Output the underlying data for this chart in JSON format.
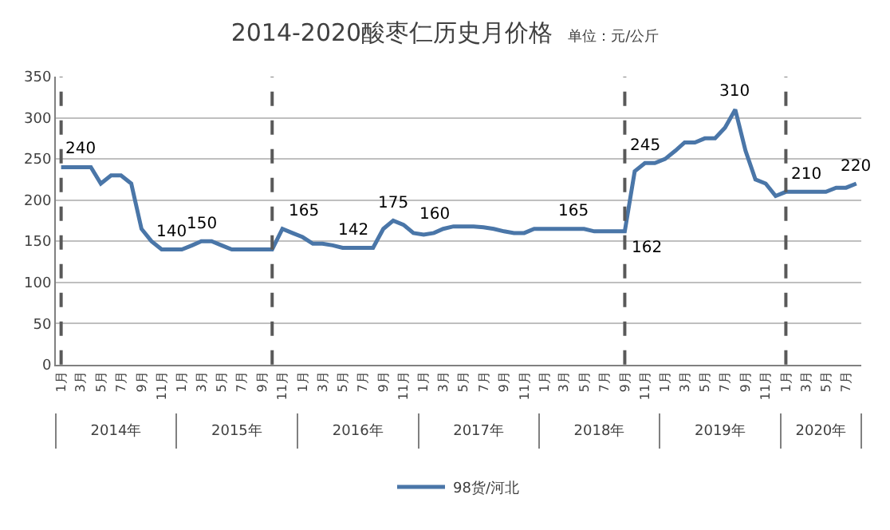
{
  "chart_data": {
    "type": "line",
    "title": "2014-2020酸枣仁历史月价格",
    "subtitle": "单位：元/公斤",
    "x": [
      "2014-01",
      "2014-02",
      "2014-03",
      "2014-04",
      "2014-05",
      "2014-06",
      "2014-07",
      "2014-08",
      "2014-09",
      "2014-10",
      "2014-11",
      "2014-12",
      "2015-01",
      "2015-02",
      "2015-03",
      "2015-04",
      "2015-05",
      "2015-06",
      "2015-07",
      "2015-08",
      "2015-09",
      "2015-10",
      "2015-11",
      "2015-12",
      "2016-01",
      "2016-02",
      "2016-03",
      "2016-04",
      "2016-05",
      "2016-06",
      "2016-07",
      "2016-08",
      "2016-09",
      "2016-10",
      "2016-11",
      "2016-12",
      "2017-01",
      "2017-02",
      "2017-03",
      "2017-04",
      "2017-05",
      "2017-06",
      "2017-07",
      "2017-08",
      "2017-09",
      "2017-10",
      "2017-11",
      "2017-12",
      "2018-01",
      "2018-02",
      "2018-03",
      "2018-04",
      "2018-05",
      "2018-06",
      "2018-07",
      "2018-08",
      "2018-09",
      "2018-10",
      "2018-11",
      "2018-12",
      "2019-01",
      "2019-02",
      "2019-03",
      "2019-04",
      "2019-05",
      "2019-06",
      "2019-07",
      "2019-08",
      "2019-09",
      "2019-10",
      "2019-11",
      "2019-12",
      "2020-01",
      "2020-02",
      "2020-03",
      "2020-04",
      "2020-05",
      "2020-06",
      "2020-07",
      "2020-08"
    ],
    "series": [
      {
        "name": "98货/河北",
        "color": "#4a76a8",
        "values": [
          240,
          240,
          240,
          240,
          220,
          230,
          230,
          220,
          165,
          150,
          140,
          140,
          140,
          145,
          150,
          150,
          145,
          140,
          140,
          140,
          140,
          140,
          165,
          160,
          155,
          147,
          147,
          145,
          142,
          142,
          142,
          142,
          165,
          175,
          170,
          160,
          158,
          160,
          165,
          168,
          168,
          168,
          167,
          165,
          162,
          160,
          160,
          165,
          165,
          165,
          165,
          165,
          165,
          162,
          162,
          162,
          162,
          235,
          245,
          245,
          250,
          260,
          270,
          270,
          275,
          275,
          288,
          310,
          260,
          225,
          220,
          205,
          210,
          210,
          210,
          210,
          210,
          215,
          215,
          220
        ]
      }
    ],
    "xlim": [
      "2013-12-16",
      "2020-08-16"
    ],
    "xticks": [
      {
        "value": "2014-01",
        "label": "1月"
      },
      {
        "value": "2014-03",
        "label": "3月"
      },
      {
        "value": "2014-05",
        "label": "5月"
      },
      {
        "value": "2014-07",
        "label": "7月"
      },
      {
        "value": "2014-09",
        "label": "9月"
      },
      {
        "value": "2014-11",
        "label": "11月"
      },
      {
        "value": "2015-01",
        "label": "1月"
      },
      {
        "value": "2015-03",
        "label": "3月"
      },
      {
        "value": "2015-05",
        "label": "5月"
      },
      {
        "value": "2015-07",
        "label": "7月"
      },
      {
        "value": "2015-09",
        "label": "9月"
      },
      {
        "value": "2015-11",
        "label": "11月"
      },
      {
        "value": "2016-01",
        "label": "1月"
      },
      {
        "value": "2016-03",
        "label": "3月"
      },
      {
        "value": "2016-05",
        "label": "5月"
      },
      {
        "value": "2016-07",
        "label": "7月"
      },
      {
        "value": "2016-09",
        "label": "9月"
      },
      {
        "value": "2016-11",
        "label": "11月"
      },
      {
        "value": "2017-01",
        "label": "1月"
      },
      {
        "value": "2017-03",
        "label": "3月"
      },
      {
        "value": "2017-05",
        "label": "5月"
      },
      {
        "value": "2017-07",
        "label": "7月"
      },
      {
        "value": "2017-09",
        "label": "9月"
      },
      {
        "value": "2017-11",
        "label": "11月"
      },
      {
        "value": "2018-01",
        "label": "1月"
      },
      {
        "value": "2018-03",
        "label": "3月"
      },
      {
        "value": "2018-05",
        "label": "5月"
      },
      {
        "value": "2018-07",
        "label": "7月"
      },
      {
        "value": "2018-09",
        "label": "9月"
      },
      {
        "value": "2018-11",
        "label": "11月"
      },
      {
        "value": "2019-01",
        "label": "1月"
      },
      {
        "value": "2019-03",
        "label": "3月"
      },
      {
        "value": "2019-05",
        "label": "5月"
      },
      {
        "value": "2019-07",
        "label": "7月"
      },
      {
        "value": "2019-09",
        "label": "9月"
      },
      {
        "value": "2019-11",
        "label": "11月"
      },
      {
        "value": "2020-01",
        "label": "1月"
      },
      {
        "value": "2020-03",
        "label": "3月"
      },
      {
        "value": "2020-05",
        "label": "5月"
      },
      {
        "value": "2020-07",
        "label": "7月"
      }
    ],
    "x2lim": [
      "2013-12-16",
      "2020-08-16"
    ],
    "x2ticks": [
      {
        "value": "2014-06-16",
        "label": "2014年"
      },
      {
        "value": "2015-06-16",
        "label": "2015年"
      },
      {
        "value": "2016-06-16",
        "label": "2016年"
      },
      {
        "value": "2017-06-16",
        "label": "2017年"
      },
      {
        "value": "2018-06-16",
        "label": "2018年"
      },
      {
        "value": "2019-06-16",
        "label": "2019年"
      },
      {
        "value": "2020-04-16",
        "label": "2020年"
      }
    ],
    "ylim": [
      0,
      350
    ],
    "yticks": [
      0,
      50,
      100,
      150,
      200,
      250,
      300,
      350
    ],
    "grid": "y",
    "legend": "bottom",
    "line_style": "solid",
    "marker": "none",
    "ref_lines": [
      {
        "axis": "x",
        "value": "2014-01",
        "label": null,
        "color": "#595959",
        "line_style": "dashed"
      },
      {
        "axis": "x",
        "value": "2015-10",
        "label": null,
        "color": "#595959",
        "line_style": "dashed"
      },
      {
        "axis": "x",
        "value": "2018-09",
        "label": null,
        "color": "#595959",
        "line_style": "dashed"
      },
      {
        "axis": "x",
        "value": "2020-01",
        "label": null,
        "color": "#595959",
        "line_style": "dashed"
      }
    ],
    "annotations": [
      {
        "text": "240",
        "x": "2014-03",
        "y": 240
      },
      {
        "text": "140",
        "x": "2014-12",
        "y": 140
      },
      {
        "text": "150",
        "x": "2015-03",
        "y": 150
      },
      {
        "text": "165",
        "x": "2015-11",
        "y": 165
      },
      {
        "text": "142",
        "x": "2016-06",
        "y": 142
      },
      {
        "text": "175",
        "x": "2016-10",
        "y": 175
      },
      {
        "text": "160",
        "x": "2017-02",
        "y": 160
      },
      {
        "text": "165",
        "x": "2018-04",
        "y": 165
      },
      {
        "text": "162",
        "x": "2018-09",
        "y": 162
      },
      {
        "text": "245",
        "x": "2018-11",
        "y": 245
      },
      {
        "text": "310",
        "x": "2019-08",
        "y": 310
      },
      {
        "text": "210",
        "x": "2020-03",
        "y": 210
      },
      {
        "text": "220",
        "x": "2020-08",
        "y": 220
      }
    ]
  }
}
